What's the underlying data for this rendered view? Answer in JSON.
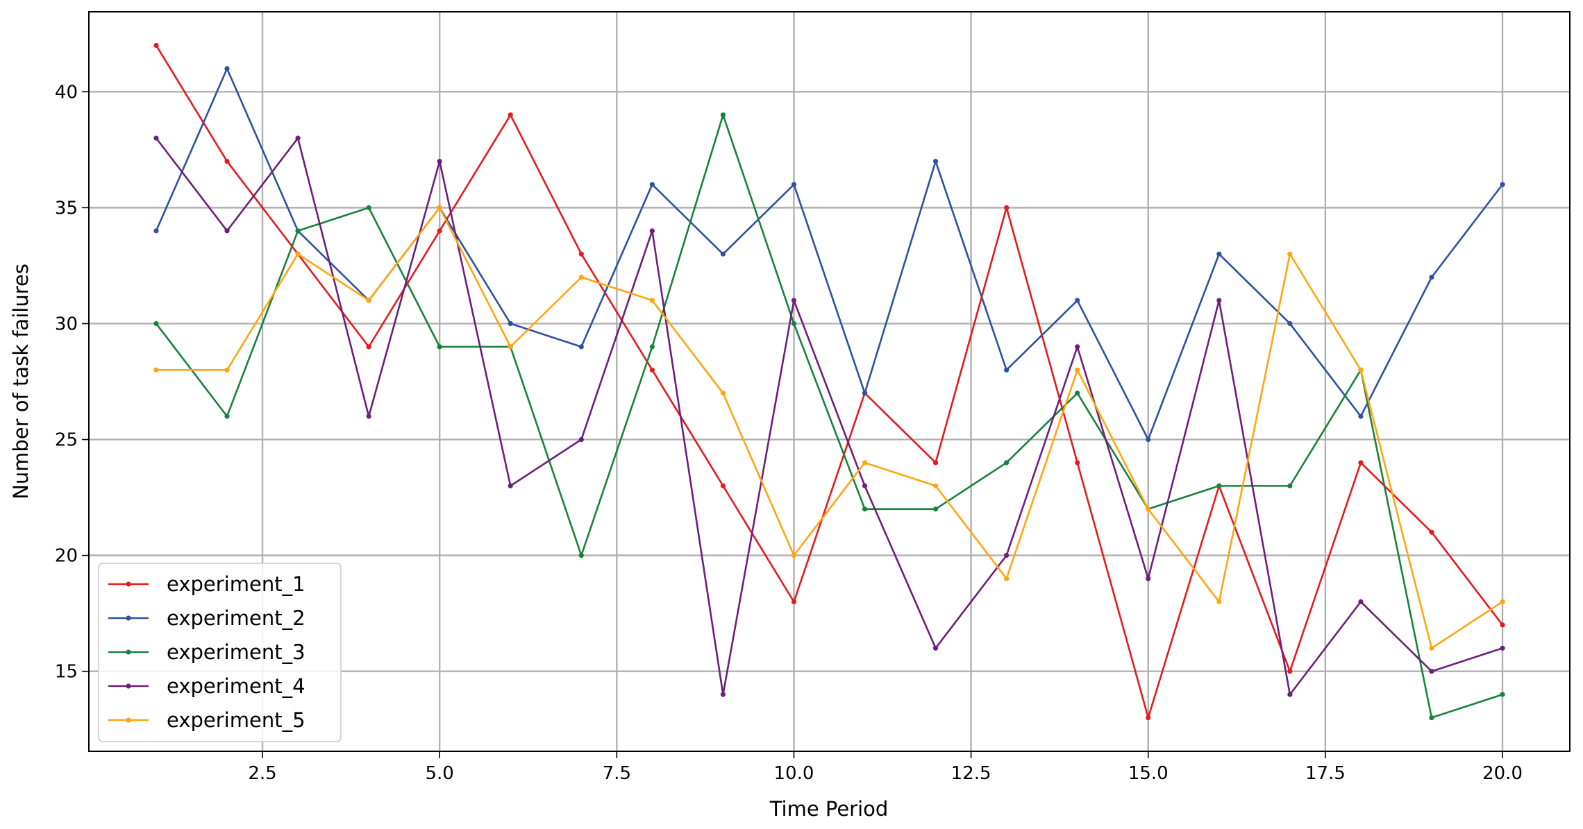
{
  "chart_data": {
    "type": "line",
    "xlabel": "Time Period",
    "ylabel": "Number of task failures",
    "x": [
      1,
      2,
      3,
      4,
      5,
      6,
      7,
      8,
      9,
      10,
      11,
      12,
      13,
      14,
      15,
      16,
      17,
      18,
      19,
      20
    ],
    "series": [
      {
        "name": "experiment_1",
        "color": "#e41a1c",
        "values": [
          42,
          37,
          33,
          29,
          34,
          39,
          33,
          28,
          23,
          18,
          27,
          24,
          35,
          24,
          13,
          23,
          15,
          24,
          21,
          17
        ]
      },
      {
        "name": "experiment_2",
        "color": "#2f4fa2",
        "values": [
          34,
          41,
          34,
          31,
          35,
          30,
          29,
          36,
          33,
          36,
          27,
          37,
          28,
          31,
          25,
          33,
          30,
          26,
          32,
          36
        ]
      },
      {
        "name": "experiment_3",
        "color": "#16823a",
        "values": [
          30,
          26,
          34,
          35,
          29,
          29,
          20,
          29,
          39,
          30,
          22,
          22,
          24,
          27,
          22,
          23,
          23,
          28,
          13,
          14
        ]
      },
      {
        "name": "experiment_4",
        "color": "#6b1f7c",
        "values": [
          38,
          34,
          38,
          26,
          37,
          23,
          25,
          34,
          14,
          31,
          23,
          16,
          20,
          29,
          19,
          31,
          14,
          18,
          15,
          16
        ]
      },
      {
        "name": "experiment_5",
        "color": "#ffa510",
        "values": [
          28,
          28,
          33,
          31,
          35,
          29,
          32,
          31,
          27,
          20,
          24,
          23,
          19,
          28,
          22,
          18,
          33,
          28,
          16,
          18
        ]
      }
    ],
    "xlim": [
      0.05,
      20.95
    ],
    "ylim": [
      11.55,
      43.45
    ],
    "xticks": [
      2.5,
      {
        "value": 5,
        "label": "5.0"
      },
      7.5,
      {
        "value": 10,
        "label": "10.0"
      },
      12.5,
      {
        "value": 15,
        "label": "15.0"
      },
      17.5,
      {
        "value": 20,
        "label": "20.0"
      }
    ],
    "yticks": [
      15,
      20,
      25,
      30,
      35,
      40
    ],
    "grid": true,
    "legend": "lower left"
  }
}
